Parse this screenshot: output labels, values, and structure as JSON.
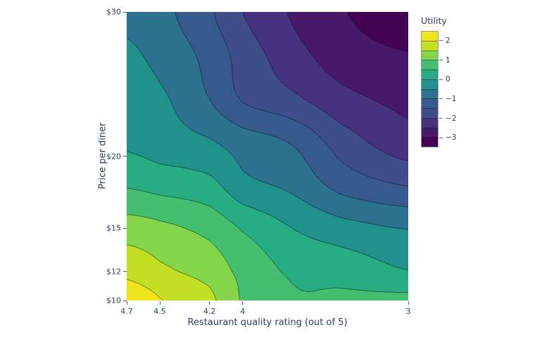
{
  "chart_data": {
    "type": "contour",
    "x_title": "Restaurant quality rating (out of 5)",
    "y_title": "Price per diner",
    "x_range": [
      4.7,
      3.0
    ],
    "y_range": [
      10,
      30
    ],
    "x_ticks": [
      {
        "value": 4.7,
        "label": "4.7"
      },
      {
        "value": 4.5,
        "label": "4.5"
      },
      {
        "value": 4.2,
        "label": "4.2"
      },
      {
        "value": 4.0,
        "label": "4"
      },
      {
        "value": 3.0,
        "label": "3"
      }
    ],
    "y_ticks": [
      {
        "value": 30,
        "label": "$30"
      },
      {
        "value": 20,
        "label": "$20"
      },
      {
        "value": 15,
        "label": "$15"
      },
      {
        "value": 12,
        "label": "$12"
      },
      {
        "value": 10,
        "label": "$10"
      }
    ],
    "colorbar": {
      "title": "Utility",
      "zmin": -3.5,
      "zmax": 2.5,
      "band_size": 0.5,
      "tick_values": [
        2,
        1,
        0,
        -1,
        -2,
        -3
      ],
      "tick_labels": [
        "2",
        "1",
        "0",
        "−1",
        "−2",
        "−3"
      ]
    },
    "band_colors_low_to_high": [
      "#440456",
      "#481a6c",
      "#46327e",
      "#3d4e8a",
      "#375a8c",
      "#2c728e",
      "#21918c",
      "#27ad81",
      "#44bf70",
      "#85d54a",
      "#c2df23",
      "#f0e51d"
    ],
    "text_color": "#2a3f5f",
    "grid": {
      "q": [
        4.7,
        4.5,
        4.2,
        4.0,
        3.7,
        3.4,
        3.0
      ],
      "p": [
        30,
        27,
        24,
        21,
        18,
        15,
        12,
        10
      ],
      "z": [
        [
          -0.62,
          -0.85,
          -1.42,
          -2.0,
          -2.55,
          -2.97,
          -3.3
        ],
        [
          -0.42,
          -0.65,
          -1.15,
          -1.72,
          -2.3,
          -2.75,
          -2.97
        ],
        [
          -0.35,
          -0.42,
          -1.0,
          -1.55,
          -1.9,
          -2.35,
          -2.63
        ],
        [
          -0.1,
          -0.25,
          -0.45,
          -0.75,
          -1.05,
          -1.75,
          -2.3
        ],
        [
          0.45,
          0.32,
          0.15,
          -0.35,
          -0.62,
          -1.18,
          -1.52
        ],
        [
          1.25,
          1.12,
          0.85,
          0.45,
          0.0,
          -0.3,
          -0.52
        ],
        [
          1.85,
          1.6,
          1.3,
          0.85,
          0.42,
          0.3,
          0.02
        ],
        [
          2.3,
          2.02,
          1.62,
          0.95,
          0.55,
          0.58,
          0.62
        ]
      ]
    }
  }
}
